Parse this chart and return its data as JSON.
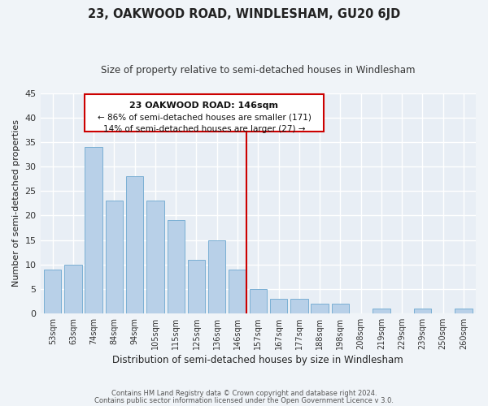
{
  "title": "23, OAKWOOD ROAD, WINDLESHAM, GU20 6JD",
  "subtitle": "Size of property relative to semi-detached houses in Windlesham",
  "xlabel": "Distribution of semi-detached houses by size in Windlesham",
  "ylabel": "Number of semi-detached properties",
  "bar_labels": [
    "53sqm",
    "63sqm",
    "74sqm",
    "84sqm",
    "94sqm",
    "105sqm",
    "115sqm",
    "125sqm",
    "136sqm",
    "146sqm",
    "157sqm",
    "167sqm",
    "177sqm",
    "188sqm",
    "198sqm",
    "208sqm",
    "219sqm",
    "229sqm",
    "239sqm",
    "250sqm",
    "260sqm"
  ],
  "bar_values": [
    9,
    10,
    34,
    23,
    28,
    23,
    19,
    11,
    15,
    9,
    5,
    3,
    3,
    2,
    2,
    0,
    1,
    0,
    1,
    0,
    1
  ],
  "bar_color": "#b8d0e8",
  "bar_edge_color": "#7aafd4",
  "vline_index": 9,
  "vline_color": "#cc0000",
  "ylim": [
    0,
    45
  ],
  "yticks": [
    0,
    5,
    10,
    15,
    20,
    25,
    30,
    35,
    40,
    45
  ],
  "annotation_title": "23 OAKWOOD ROAD: 146sqm",
  "annotation_line1": "← 86% of semi-detached houses are smaller (171)",
  "annotation_line2": "14% of semi-detached houses are larger (27) →",
  "footnote1": "Contains HM Land Registry data © Crown copyright and database right 2024.",
  "footnote2": "Contains public sector information licensed under the Open Government Licence v 3.0.",
  "bg_color": "#f0f4f8",
  "plot_bg_color": "#e8eef5"
}
